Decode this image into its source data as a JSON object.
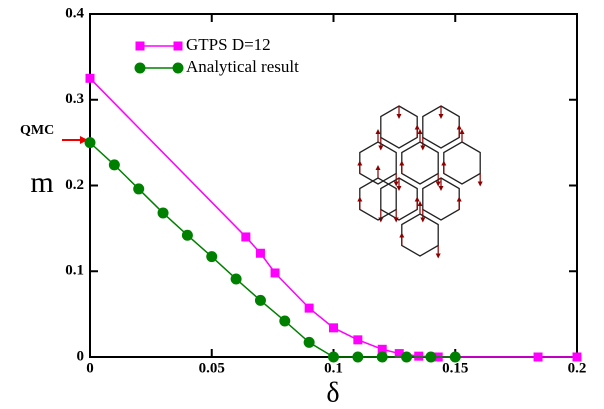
{
  "chart_data": {
    "type": "line",
    "x_label": "δ",
    "y_label": "m",
    "annotation": "QMC",
    "xlim": [
      0,
      0.2
    ],
    "ylim": [
      0,
      0.4
    ],
    "xticks": [
      0,
      0.05,
      0.1,
      0.15,
      0.2
    ],
    "yticks": [
      0,
      0.1,
      0.2,
      0.3,
      0.4
    ],
    "legend": "upper left",
    "series": [
      {
        "name": "GTPS D=12",
        "color": "#ff00ff",
        "marker": "square",
        "x": [
          0,
          0.064,
          0.07,
          0.076,
          0.09,
          0.1,
          0.11,
          0.12,
          0.127,
          0.135,
          0.143,
          0.184,
          0.2
        ],
        "values": [
          0.325,
          0.14,
          0.121,
          0.098,
          0.057,
          0.034,
          0.02,
          0.009,
          0.004,
          0.001,
          0,
          0,
          0
        ]
      },
      {
        "name": "Analytical result",
        "color": "#008000",
        "marker": "circle",
        "x": [
          0,
          0.01,
          0.02,
          0.03,
          0.04,
          0.05,
          0.06,
          0.07,
          0.08,
          0.09,
          0.1,
          0.11,
          0.12,
          0.13,
          0.14,
          0.15
        ],
        "values": [
          0.25,
          0.224,
          0.196,
          0.168,
          0.142,
          0.117,
          0.091,
          0.066,
          0.042,
          0.017,
          0,
          0,
          0,
          0,
          0,
          0
        ]
      }
    ]
  }
}
